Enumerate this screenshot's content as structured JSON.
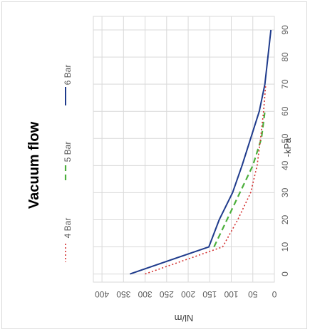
{
  "chart_data": {
    "type": "line",
    "title": "Vacuum flow",
    "xlabel": "-kPa",
    "ylabel": "Nl/m",
    "x_ticks": [
      0,
      10,
      20,
      30,
      40,
      50,
      60,
      70,
      80,
      90
    ],
    "y_ticks": [
      0,
      50,
      100,
      150,
      200,
      250,
      300,
      350,
      400
    ],
    "x_tick_labels": [
      "0",
      "10",
      "20",
      "30",
      "40",
      "50",
      "60",
      "70",
      "80",
      "90"
    ],
    "y_tick_labels": [
      "0",
      "50",
      "100",
      "150",
      "200",
      "250",
      "300",
      "350",
      "400"
    ],
    "xlim": [
      -3,
      95
    ],
    "ylim": [
      0,
      420
    ],
    "grid": true,
    "legend_position": "left",
    "orientation": "rotated-90-ccw",
    "series": [
      {
        "name": "6 Bar",
        "color": "#1f3b8c",
        "style": "solid",
        "x": [
          0,
          10,
          20,
          30,
          40,
          50,
          60,
          70,
          80,
          90
        ],
        "y": [
          335,
          152,
          128,
          97,
          75,
          55,
          35,
          22,
          15,
          8
        ]
      },
      {
        "name": "5 Bar",
        "color": "#4caf3c",
        "style": "dashed",
        "x": [
          10,
          20,
          30,
          40,
          50,
          60
        ],
        "y": [
          140,
          110,
          80,
          50,
          30,
          22
        ]
      },
      {
        "name": "4 Bar",
        "color": "#d32f2f",
        "style": "dotted",
        "x": [
          0,
          10,
          20,
          30,
          40,
          50,
          60,
          70
        ],
        "y": [
          300,
          120,
          85,
          55,
          40,
          32,
          25,
          20
        ]
      }
    ]
  }
}
